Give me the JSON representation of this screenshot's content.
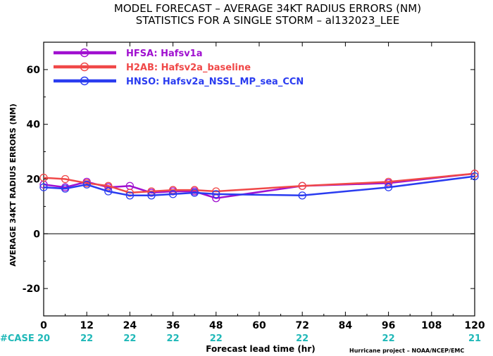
{
  "chart_data": {
    "type": "line",
    "title": "MODEL FORECAST – AVERAGE 34KT RADIUS ERRORS (NM)",
    "subtitle": "STATISTICS FOR A SINGLE STORM – al132023_LEE",
    "xlabel": "Forecast lead time (hr)",
    "ylabel": "AVERAGE 34KT RADIUS ERRORS (NM)",
    "xlim": [
      0,
      120
    ],
    "ylim": [
      -30,
      70
    ],
    "x_ticks": [
      "0",
      "12",
      "24",
      "36",
      "48",
      "60",
      "72",
      "84",
      "96",
      "108",
      "120"
    ],
    "y_ticks": [
      "-20",
      "0",
      "20",
      "40",
      "60"
    ],
    "zero_line": true,
    "grid": false,
    "legend_position": "top-left",
    "case_label": "#CASE",
    "case_x": [
      0,
      12,
      24,
      36,
      48,
      72,
      96,
      120
    ],
    "case_counts": [
      "20",
      "22",
      "22",
      "22",
      "22",
      "22",
      "22",
      "21"
    ],
    "credit": "Hurricane project – NOAA/NCEP/EMC",
    "series": [
      {
        "name": "HFSA: Hafsv1a",
        "color": "#a010d0",
        "x": [
          0,
          6,
          12,
          18,
          24,
          30,
          36,
          42,
          48,
          72,
          96,
          120
        ],
        "y": [
          18,
          17,
          19,
          17,
          17.5,
          15,
          15.5,
          15.5,
          13,
          17.5,
          18.5,
          22
        ]
      },
      {
        "name": "H2AB: Hafsv2a_baseline",
        "color": "#f04848",
        "x": [
          0,
          6,
          12,
          18,
          24,
          30,
          36,
          42,
          48,
          72,
          96,
          120
        ],
        "y": [
          20.5,
          20,
          18.5,
          17.5,
          15,
          15.5,
          16,
          16,
          15.5,
          17.5,
          19,
          22
        ]
      },
      {
        "name": "HNSO: Hafsv2a_NSSL_MP_sea_CCN",
        "color": "#2a3cf0",
        "x": [
          0,
          6,
          12,
          18,
          24,
          30,
          36,
          42,
          48,
          72,
          96,
          120
        ],
        "y": [
          17,
          16.5,
          18,
          15.5,
          14,
          14,
          14.5,
          15,
          14.5,
          14,
          17,
          21
        ]
      }
    ]
  }
}
